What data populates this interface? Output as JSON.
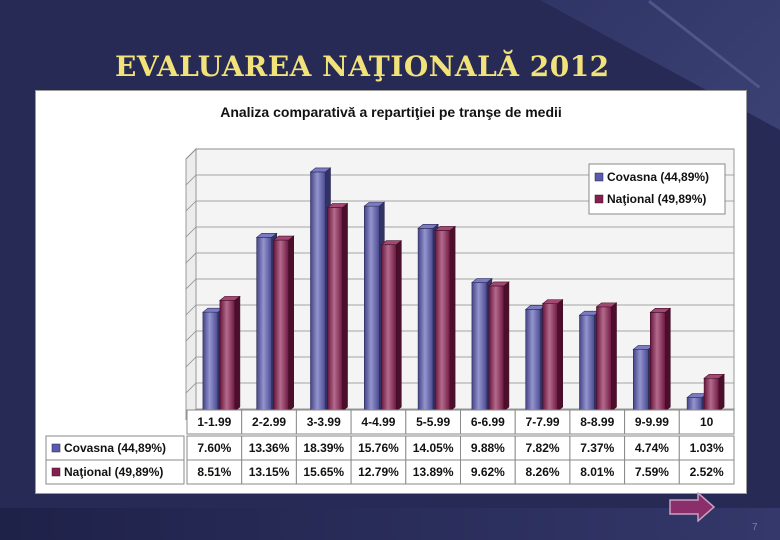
{
  "slide": {
    "title": "EVALUAREA NAŢIONALĂ 2012",
    "page_number": "7"
  },
  "colors": {
    "covasna": "#5a5ab4",
    "national": "#8a1c4f",
    "title": "#f2e27a",
    "background": "#262a55"
  },
  "chart_data": {
    "type": "bar",
    "title": "Analiza comparativă a repartiţiei pe tranşe de medii",
    "categories": [
      "1-1.99",
      "2-2.99",
      "3-3.99",
      "4-4.99",
      "5-5.99",
      "6-6.99",
      "7-7.99",
      "8-8.99",
      "9-9.99",
      "10"
    ],
    "series": [
      {
        "name": "Covasna (44,89%)",
        "values": [
          7.6,
          13.36,
          18.39,
          15.76,
          14.05,
          9.88,
          7.82,
          7.37,
          4.74,
          1.03
        ],
        "labels": [
          "7.60%",
          "13.36%",
          "18.39%",
          "15.76%",
          "14.05%",
          "9.88%",
          "7.82%",
          "7.37%",
          "4.74%",
          "1.03%"
        ]
      },
      {
        "name": "Naţional (49,89%)",
        "values": [
          8.51,
          13.15,
          15.65,
          12.79,
          13.89,
          9.62,
          8.26,
          8.01,
          7.59,
          2.52
        ],
        "labels": [
          "8.51%",
          "13.15%",
          "15.65%",
          "12.79%",
          "13.89%",
          "9.62%",
          "8.26%",
          "8.01%",
          "7.59%",
          "2.52%"
        ]
      }
    ],
    "ylim": [
      0,
      20
    ],
    "grid": true,
    "legend": "top-right",
    "data_table": true
  }
}
